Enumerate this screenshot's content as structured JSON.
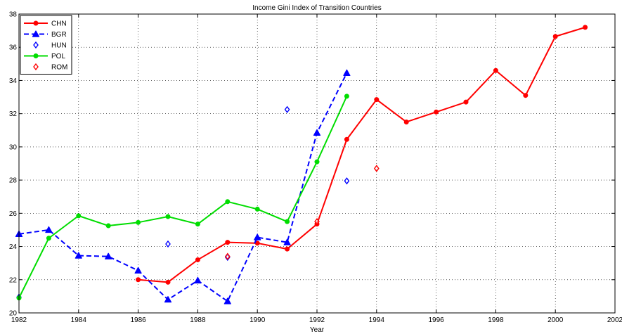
{
  "chart_data": {
    "type": "line",
    "title": "Income Gini Index of Transition Countries",
    "xlabel": "Year",
    "ylabel": "",
    "xlim": [
      1982,
      2002
    ],
    "ylim": [
      20,
      38
    ],
    "xticks": [
      1982,
      1984,
      1986,
      1988,
      1990,
      1992,
      1994,
      1996,
      1998,
      2000,
      2002
    ],
    "yticks": [
      20,
      22,
      24,
      26,
      28,
      30,
      32,
      34,
      36,
      38
    ],
    "grid": true,
    "legend_position": "top-left",
    "series": [
      {
        "name": "CHN",
        "color": "#ff0000",
        "line": "solid",
        "marker": "dot",
        "points": [
          [
            1986,
            22.0
          ],
          [
            1987,
            21.85
          ],
          [
            1988,
            23.2
          ],
          [
            1989,
            24.25
          ],
          [
            1990,
            24.2
          ],
          [
            1991,
            23.85
          ],
          [
            1992,
            25.35
          ],
          [
            1993,
            30.45
          ],
          [
            1994,
            32.85
          ],
          [
            1995,
            31.5
          ],
          [
            1996,
            32.1
          ],
          [
            1997,
            32.7
          ],
          [
            1998,
            34.6
          ],
          [
            1999,
            33.1
          ],
          [
            2000,
            36.65
          ],
          [
            2001,
            37.2
          ]
        ]
      },
      {
        "name": "BGR",
        "color": "#0000ff",
        "line": "dashed",
        "marker": "triangle",
        "points": [
          [
            1982,
            24.75
          ],
          [
            1983,
            25.0
          ],
          [
            1984,
            23.45
          ],
          [
            1985,
            23.4
          ],
          [
            1986,
            22.55
          ],
          [
            1987,
            20.8
          ],
          [
            1988,
            21.95
          ],
          [
            1989,
            20.7
          ],
          [
            1990,
            24.55
          ],
          [
            1991,
            24.25
          ],
          [
            1992,
            30.85
          ],
          [
            1993,
            34.45
          ]
        ]
      },
      {
        "name": "HUN",
        "color": "#0000ff",
        "line": "none",
        "marker": "diamond",
        "points": [
          [
            1982,
            20.95
          ],
          [
            1987,
            24.15
          ],
          [
            1989,
            23.35
          ],
          [
            1991,
            32.25
          ],
          [
            1993,
            27.95
          ]
        ]
      },
      {
        "name": "POL",
        "color": "#00dd00",
        "line": "solid",
        "marker": "dot",
        "points": [
          [
            1982,
            20.9
          ],
          [
            1983,
            24.5
          ],
          [
            1984,
            25.85
          ],
          [
            1985,
            25.25
          ],
          [
            1986,
            25.45
          ],
          [
            1987,
            25.8
          ],
          [
            1988,
            25.35
          ],
          [
            1989,
            26.7
          ],
          [
            1990,
            26.25
          ],
          [
            1991,
            25.5
          ],
          [
            1992,
            29.1
          ],
          [
            1993,
            33.05
          ]
        ]
      },
      {
        "name": "ROM",
        "color": "#ff0000",
        "line": "none",
        "marker": "diamond",
        "points": [
          [
            1989,
            23.4
          ],
          [
            1992,
            25.5
          ],
          [
            1994,
            28.7
          ]
        ]
      }
    ]
  }
}
